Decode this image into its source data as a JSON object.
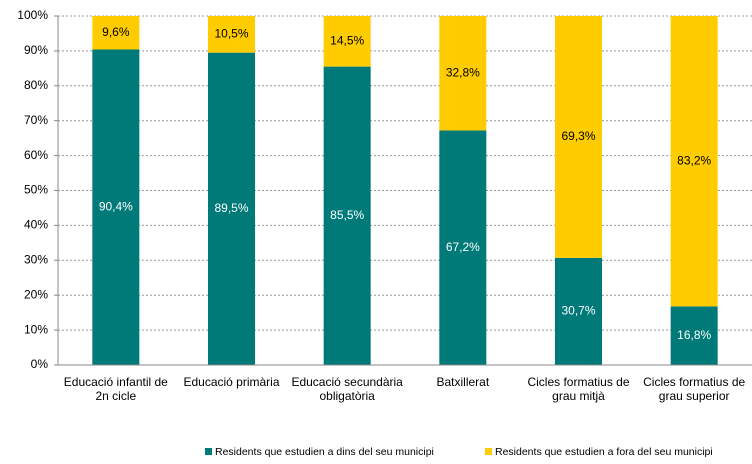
{
  "chart_data": {
    "type": "stacked_bar",
    "categories": [
      "Educació infantil de 2n cicle",
      "Educació primària",
      "Educació secundària obligatòria",
      "Batxillerat",
      "Cicles formatius de grau mitjà",
      "Cicles formatius de grau superior"
    ],
    "series": [
      {
        "name": "Residents que estudien a dins del seu municipi",
        "color": "#007a78",
        "values": [
          90.4,
          89.5,
          85.5,
          67.2,
          30.7,
          16.8
        ],
        "value_labels": [
          "90,4%",
          "89,5%",
          "85,5%",
          "67,2%",
          "30,7%",
          "16,8%"
        ]
      },
      {
        "name": "Residents que estudien a fora del seu municipi",
        "color": "#ffcc00",
        "values": [
          9.6,
          10.5,
          14.5,
          32.8,
          69.3,
          83.2
        ],
        "value_labels": [
          "9,6%",
          "10,5%",
          "14,5%",
          "32,8%",
          "69,3%",
          "83,2%"
        ]
      }
    ],
    "ylim": [
      0,
      100
    ],
    "yticks": [
      {
        "value": 0,
        "label": "0%"
      },
      {
        "value": 10,
        "label": "10%"
      },
      {
        "value": 20,
        "label": "20%"
      },
      {
        "value": 30,
        "label": "30%"
      },
      {
        "value": 40,
        "label": "40%"
      },
      {
        "value": 50,
        "label": "50%"
      },
      {
        "value": 60,
        "label": "60%"
      },
      {
        "value": 70,
        "label": "70%"
      },
      {
        "value": 80,
        "label": "80%"
      },
      {
        "value": 90,
        "label": "90%"
      },
      {
        "value": 100,
        "label": "100%"
      }
    ],
    "grid": true,
    "legend": "bottom"
  }
}
